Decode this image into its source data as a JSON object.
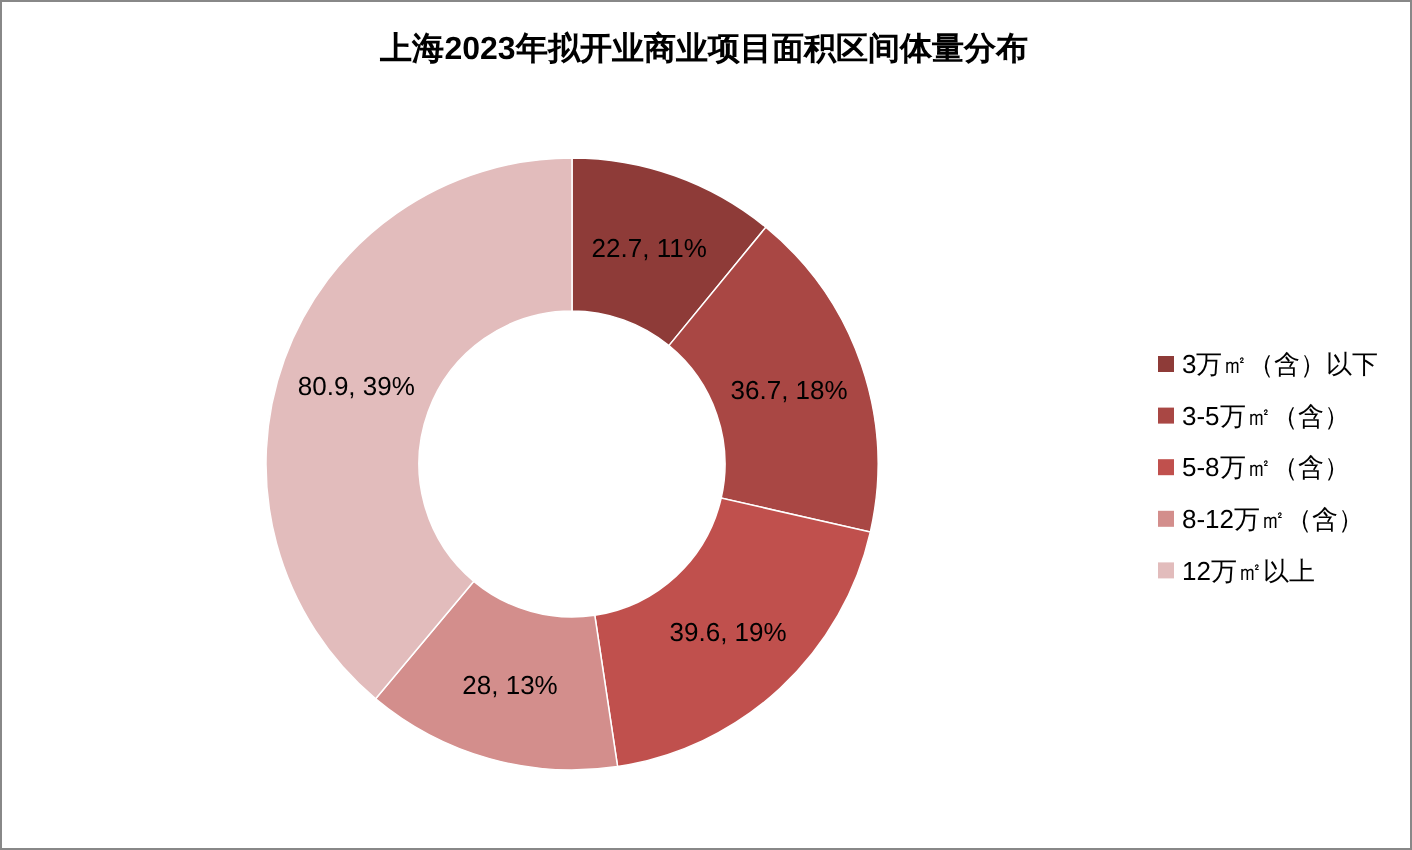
{
  "chart_data": {
    "type": "donut",
    "title": "上海2023年拟开业商业项目面积区间体量分布",
    "categories": [
      "3万㎡（含）以下",
      "3-5万㎡（含）",
      "5-8万㎡（含）",
      "8-12万㎡（含）",
      "12万㎡以上"
    ],
    "values": [
      22.7,
      36.7,
      39.6,
      28,
      80.9
    ],
    "colors": [
      "#8e3b38",
      "#a94744",
      "#c0504d",
      "#d38e8c",
      "#e2bcbc"
    ],
    "value_labels": [
      "22.7, 11%",
      "36.7, 18%",
      "39.6, 19%",
      "28, 13%",
      "80.9, 39%"
    ],
    "legend": "right"
  }
}
